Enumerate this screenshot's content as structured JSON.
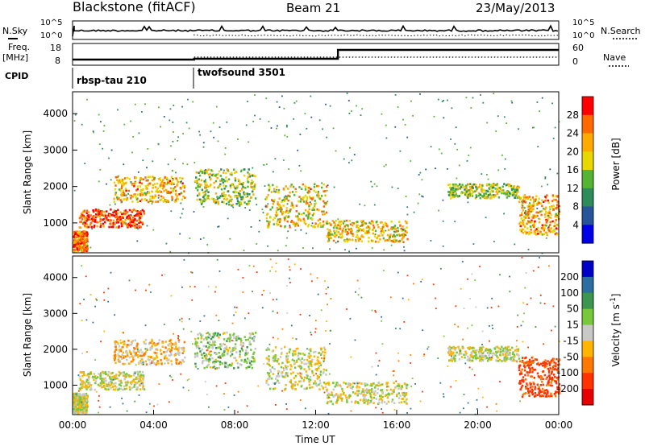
{
  "header": {
    "title": "Blackstone (fitACF)",
    "beam": "Beam 21",
    "date": "23/May/2013"
  },
  "params": {
    "nsky_label": "N.Sky",
    "nsearch_label": "N.Search",
    "nsky_ticks": [
      "10^5",
      "10^0"
    ],
    "freq_label": "Freq.",
    "freq_unit": "[MHz]",
    "freq_ticks": [
      "18",
      "8"
    ],
    "nave_label": "Nave",
    "nave_ticks": [
      "60",
      "0"
    ],
    "cpid_label": "CPID",
    "cpid_names": [
      "rbsp-tau 210",
      "twofsound 3501"
    ]
  },
  "time_axis": {
    "label": "Time UT",
    "ticks": [
      "00:00",
      "04:00",
      "08:00",
      "12:00",
      "16:00",
      "20:00",
      "00:00"
    ]
  },
  "chart_data": [
    {
      "type": "heatmap",
      "title": "",
      "xlabel": "",
      "ylabel": "Slant Range [km]",
      "yticks": [
        "1000",
        "2000",
        "3000",
        "4000"
      ],
      "xlim": [
        0,
        24
      ],
      "ylim": [
        180,
        4600
      ],
      "colorbar": {
        "label": "Power [dB]",
        "ticks": [
          "28",
          "24",
          "20",
          "16",
          "12",
          "8",
          "4"
        ],
        "colors": [
          "#ff0000",
          "#ff6a00",
          "#ffaa00",
          "#e6d800",
          "#55b432",
          "#2d8c5a",
          "#28559a",
          "#0000e6"
        ]
      },
      "bands": [
        {
          "t0": 0.3,
          "t1": 3.5,
          "r0": 900,
          "r1": 1400,
          "level": 26
        },
        {
          "t0": 2.0,
          "t1": 5.5,
          "r0": 1600,
          "r1": 2300,
          "level": 20
        },
        {
          "t0": 0.0,
          "t1": 0.7,
          "r0": 250,
          "r1": 800,
          "level": 24
        },
        {
          "t0": 6.0,
          "t1": 9.0,
          "r0": 1500,
          "r1": 2500,
          "level": 14
        },
        {
          "t0": 9.5,
          "t1": 12.5,
          "r0": 900,
          "r1": 2100,
          "level": 18
        },
        {
          "t0": 12.5,
          "t1": 16.5,
          "r0": 500,
          "r1": 1100,
          "level": 18
        },
        {
          "t0": 18.5,
          "t1": 22.0,
          "r0": 1700,
          "r1": 2100,
          "level": 14
        },
        {
          "t0": 22.0,
          "t1": 24.0,
          "r0": 700,
          "r1": 1800,
          "level": 20
        }
      ]
    },
    {
      "type": "heatmap",
      "title": "",
      "xlabel": "Time UT",
      "ylabel": "Slant Range [km]",
      "yticks": [
        "1000",
        "2000",
        "3000",
        "4000"
      ],
      "xlim": [
        0,
        24
      ],
      "ylim": [
        180,
        4600
      ],
      "colorbar": {
        "label": "Velocity [m s^-1]",
        "ticks": [
          "200",
          "100",
          "50",
          "15",
          "-15",
          "-50",
          "-100",
          "-200"
        ],
        "colors": [
          "#0000c8",
          "#2d6ea0",
          "#3c9650",
          "#78c83c",
          "#c8c8c8",
          "#ffb400",
          "#ff7800",
          "#ff3200",
          "#e60000"
        ]
      },
      "bands": [
        {
          "t0": 0.3,
          "t1": 3.5,
          "r0": 900,
          "r1": 1400,
          "level": 0
        },
        {
          "t0": 2.0,
          "t1": 5.5,
          "r0": 1600,
          "r1": 2300,
          "level": -30
        },
        {
          "t0": 0.0,
          "t1": 0.7,
          "r0": 250,
          "r1": 800,
          "level": 0
        },
        {
          "t0": 6.0,
          "t1": 9.0,
          "r0": 1500,
          "r1": 2500,
          "level": 20
        },
        {
          "t0": 9.5,
          "t1": 12.5,
          "r0": 900,
          "r1": 2100,
          "level": 0
        },
        {
          "t0": 12.5,
          "t1": 16.5,
          "r0": 500,
          "r1": 1100,
          "level": 0
        },
        {
          "t0": 18.5,
          "t1": 22.0,
          "r0": 1700,
          "r1": 2100,
          "level": 0
        },
        {
          "t0": 22.0,
          "t1": 24.0,
          "r0": 700,
          "r1": 1800,
          "level": -120
        }
      ]
    }
  ]
}
